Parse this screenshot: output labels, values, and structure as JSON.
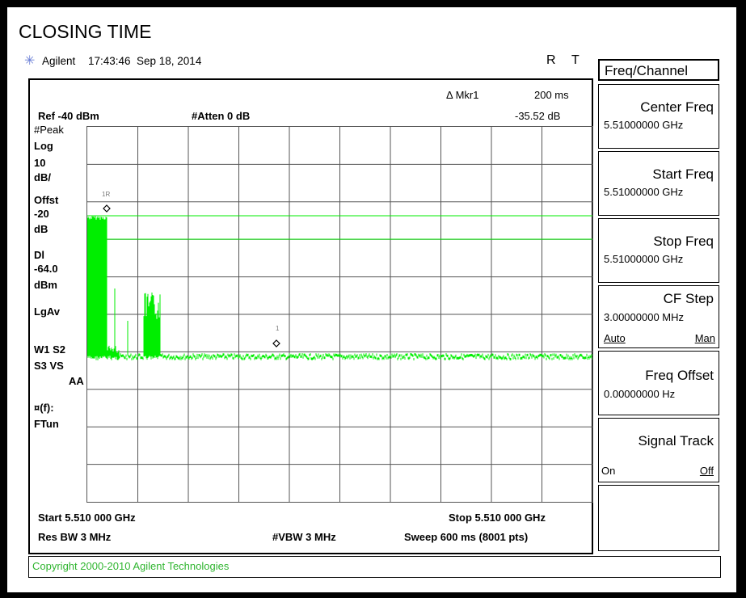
{
  "title": "CLOSING TIME",
  "header": {
    "brand": "Agilent",
    "time": "17:43:46",
    "date": "Sep 18, 2014",
    "flags": [
      "R",
      "T"
    ]
  },
  "marker": {
    "label": "Δ Mkr1",
    "time": "200 ms",
    "value": "-35.52 dB"
  },
  "settings": {
    "ref": "Ref -40 dBm",
    "atten": "#Atten 0 dB"
  },
  "left_labels": {
    "peak": "#Peak",
    "log": "Log",
    "ten": "10",
    "dbdiv": "dB/",
    "offst": "Offst",
    "offst_val": "-20",
    "offst_unit": "dB",
    "dl": "Dl",
    "dl_val": "-64.0",
    "dl_unit": "dBm",
    "lgav": "LgAv",
    "w1s2": "W1  S2",
    "s3vs": "S3  VS",
    "aa": "AA",
    "ff": "¤(f):",
    "ftun": "FTun"
  },
  "marker_labels": {
    "m1r": "1R",
    "m1": "1"
  },
  "bottom": {
    "start": "Start 5.510 000 GHz",
    "stop": "Stop 5.510 000 GHz",
    "res_bw": "Res BW 3 MHz",
    "vbw": "#VBW 3 MHz",
    "sweep": "Sweep 600 ms (8001 pts)"
  },
  "footer": "Copyright 2000-2010 Agilent Technologies",
  "menu": {
    "title": "Freq/Channel",
    "items": [
      {
        "label": "Center Freq",
        "value": "5.51000000 GHz"
      },
      {
        "label": "Start Freq",
        "value": "5.51000000 GHz"
      },
      {
        "label": "Stop Freq",
        "value": "5.51000000 GHz"
      },
      {
        "label": "CF Step",
        "value": "3.00000000 MHz",
        "opt1": "Auto",
        "opt2": "Man"
      },
      {
        "label": "Freq Offset",
        "value": "0.00000000  Hz"
      },
      {
        "label": "Signal Track",
        "opt1": "On",
        "opt2": "Off"
      }
    ]
  },
  "colors": {
    "trace": "#00ee00",
    "footer_text": "#2fb52f",
    "logo": "#6b7fd6"
  }
}
